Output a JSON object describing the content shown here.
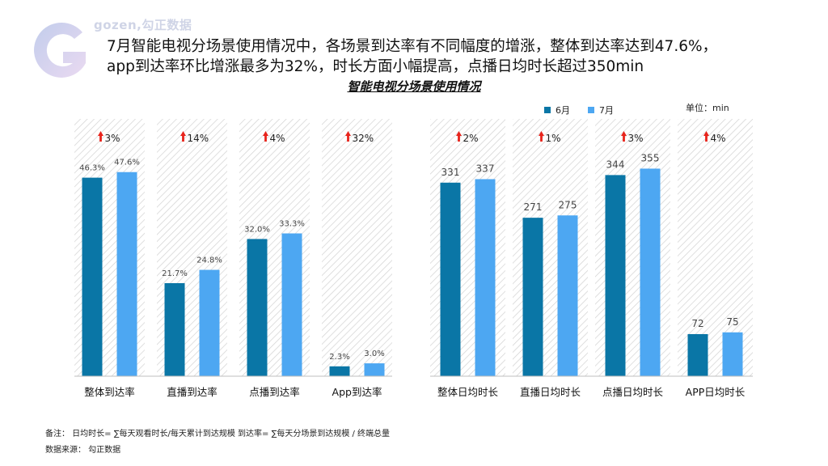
{
  "brand": {
    "logo_text": "gozen,勾正数据",
    "logo_letter": "G"
  },
  "headline": {
    "line1": "7月智能电视分场景使用情况中，各场景到达率有不同幅度的增涨，整体到达率达到47.6%，",
    "line2": "app到达率环比增涨最多为32%，时长方面小幅提高，点播日均时长超过350min"
  },
  "subtitle": "智能电视分场景使用情况",
  "legend": {
    "june": "6月",
    "july": "7月"
  },
  "unit_label": "单位：min",
  "colors": {
    "june": "#0a76a6",
    "july": "#4da7f2",
    "arrow": "#e8241c",
    "hatch": "#cfcfcf"
  },
  "chart_data": {
    "type": "bar",
    "series": [
      {
        "name": "6月",
        "color": "#0a76a6"
      },
      {
        "name": "7月",
        "color": "#4da7f2"
      }
    ],
    "groups": [
      {
        "name": "到达率",
        "ylim": [
          0,
          60
        ],
        "categories": [
          "整体到达率",
          "直播到达率",
          "点播到达率",
          "App到达率"
        ],
        "values_june": [
          46.3,
          21.7,
          32.0,
          2.3
        ],
        "values_july": [
          47.6,
          24.8,
          33.3,
          3.0
        ],
        "labels_june": [
          "46.3%",
          "21.7%",
          "32.0%",
          "2.3%"
        ],
        "labels_july": [
          "47.6%",
          "24.8%",
          "33.3%",
          "3.0%"
        ],
        "growth": [
          "3%",
          "14%",
          "4%",
          "32%"
        ]
      },
      {
        "name": "日均时长",
        "ylim": [
          0,
          440
        ],
        "categories": [
          "整体日均时长",
          "直播日均时长",
          "点播日均时长",
          "APP日均时长"
        ],
        "values_june": [
          331,
          271,
          344,
          72
        ],
        "values_july": [
          337,
          275,
          355,
          75
        ],
        "labels_june": [
          "331",
          "271",
          "344",
          "72"
        ],
        "labels_july": [
          "337",
          "275",
          "355",
          "75"
        ],
        "growth": [
          "2%",
          "1%",
          "3%",
          "4%"
        ]
      }
    ]
  },
  "notes": {
    "formula": "备注：  日均时长= ∑每天观看时长/每天累计到达规模    到达率= ∑每天分场景到达规模 / 终端总量",
    "source": "数据来源：  勾正数据"
  }
}
